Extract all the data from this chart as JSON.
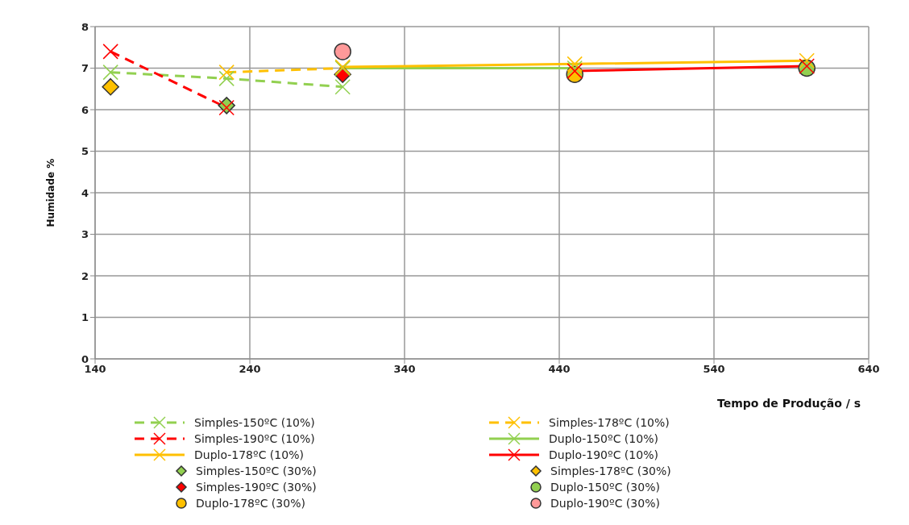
{
  "chart_data": {
    "type": "line",
    "xlabel": "Tempo de Produção  / s",
    "ylabel": "Humidade    %",
    "xlim": [
      140,
      640
    ],
    "xticks": [
      140,
      240,
      340,
      440,
      540,
      640
    ],
    "ylim": [
      0,
      8
    ],
    "yticks": [
      0,
      1,
      2,
      3,
      4,
      5,
      6,
      7,
      8
    ],
    "grid": true,
    "legend": "bottom",
    "series": [
      {
        "name": "Simples-150ºC (10%)",
        "type": "line",
        "color": "#92d050",
        "line_style": "dashed",
        "marker": "cross",
        "x": [
          150,
          225,
          300
        ],
        "values": [
          6.9,
          6.75,
          6.55
        ]
      },
      {
        "name": "Simples-178ºC (10%)",
        "type": "line",
        "color": "#ffc000",
        "line_style": "dashed",
        "marker": "cross",
        "x": [
          225,
          300
        ],
        "values": [
          6.9,
          7.0
        ]
      },
      {
        "name": "Simples-190ºC (10%)",
        "type": "line",
        "color": "#ff0000",
        "line_style": "dashed",
        "marker": "cross",
        "x": [
          150,
          225
        ],
        "values": [
          7.4,
          6.05
        ]
      },
      {
        "name": "Duplo-150ºC (10%)",
        "type": "line",
        "color": "#92d050",
        "line_style": "solid",
        "marker": "cross",
        "x": [
          300,
          450
        ],
        "values": [
          7.0,
          7.0
        ]
      },
      {
        "name": "Duplo-178ºC (10%)",
        "type": "line",
        "color": "#ffc000",
        "line_style": "solid",
        "marker": "cross",
        "x": [
          300,
          450,
          600
        ],
        "values": [
          7.03,
          7.1,
          7.18
        ]
      },
      {
        "name": "Duplo-190ºC (10%)",
        "type": "line",
        "color": "#ff0000",
        "line_style": "solid",
        "marker": "cross",
        "x": [
          450,
          600
        ],
        "values": [
          6.93,
          7.05
        ]
      },
      {
        "name": "Simples-150ºC (30%)",
        "type": "scatter",
        "color": "#92d050",
        "marker": "diamond",
        "x": [
          225
        ],
        "values": [
          6.1
        ]
      },
      {
        "name": "Simples-178ºC (30%)",
        "type": "scatter",
        "color": "#ffc000",
        "marker": "diamond",
        "x": [
          150
        ],
        "values": [
          6.55
        ]
      },
      {
        "name": "Simples-190ºC (30%)",
        "type": "scatter",
        "color": "#ff0000",
        "marker": "diamond",
        "x": [
          300
        ],
        "values": [
          6.85
        ]
      },
      {
        "name": "Duplo-150ºC (30%)",
        "type": "scatter",
        "color": "#92d050",
        "marker": "circle",
        "x": [
          600
        ],
        "values": [
          7.0
        ]
      },
      {
        "name": "Duplo-178ºC (30%)",
        "type": "scatter",
        "color": "#ffc000",
        "marker": "circle",
        "x": [
          450
        ],
        "values": [
          6.85
        ]
      },
      {
        "name": "Duplo-190ºC (30%)",
        "type": "scatter",
        "color": "#ff9999",
        "marker": "circle",
        "x": [
          300
        ],
        "values": [
          7.4
        ]
      }
    ]
  }
}
